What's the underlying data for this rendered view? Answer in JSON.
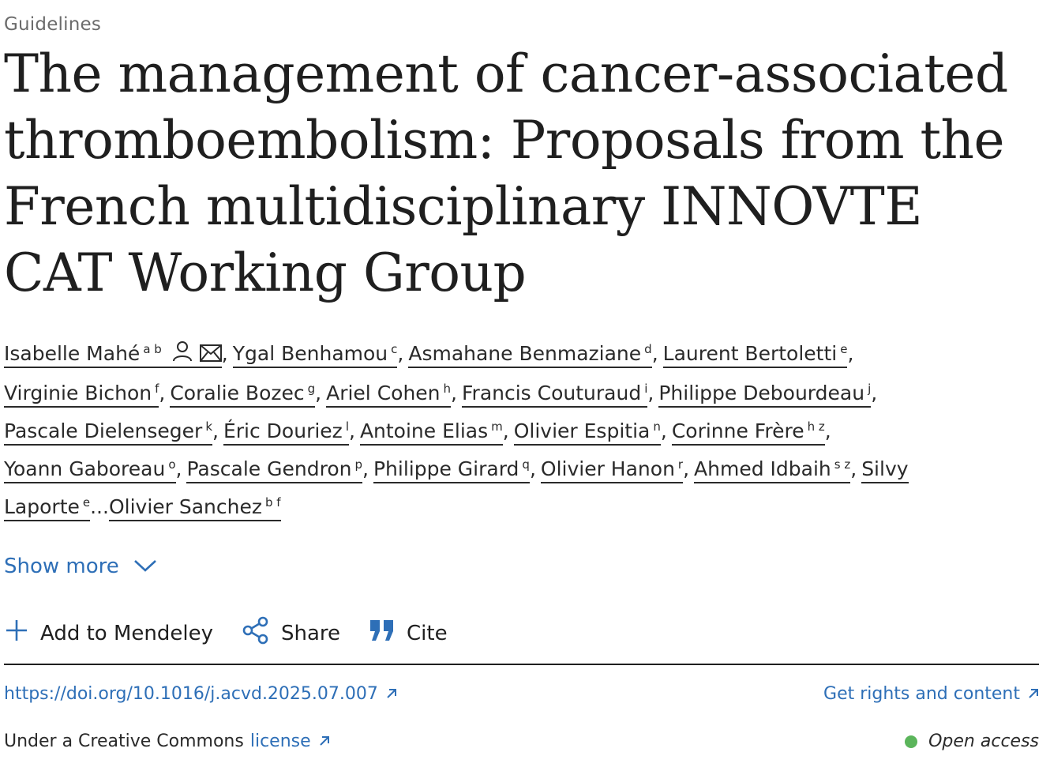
{
  "article_type": "Guidelines",
  "title": "The management of cancer-associated thromboembolism: Proposals from the French multidisciplinary INNOVTE CAT Working Group",
  "authors": [
    {
      "name": "Isabelle Mahé",
      "sup": "a b",
      "corresponding": true
    },
    {
      "name": "Ygal Benhamou",
      "sup": "c"
    },
    {
      "name": "Asmahane Benmaziane",
      "sup": "d"
    },
    {
      "name": "Laurent Bertoletti",
      "sup": "e"
    },
    {
      "name": "Virginie Bichon",
      "sup": "f"
    },
    {
      "name": "Coralie Bozec",
      "sup": "g"
    },
    {
      "name": "Ariel Cohen",
      "sup": "h"
    },
    {
      "name": "Francis Couturaud",
      "sup": "i"
    },
    {
      "name": "Philippe Debourdeau",
      "sup": "j"
    },
    {
      "name": "Pascale Dielenseger",
      "sup": "k"
    },
    {
      "name": "Éric Douriez",
      "sup": "l"
    },
    {
      "name": "Antoine Elias",
      "sup": "m"
    },
    {
      "name": "Olivier Espitia",
      "sup": "n"
    },
    {
      "name": "Corinne Frère",
      "sup": "h z"
    },
    {
      "name": "Yoann Gaboreau",
      "sup": "o"
    },
    {
      "name": "Pascale Gendron",
      "sup": "p"
    },
    {
      "name": "Philippe Girard",
      "sup": "q"
    },
    {
      "name": "Olivier Hanon",
      "sup": "r"
    },
    {
      "name": "Ahmed Idbaih",
      "sup": "s z"
    },
    {
      "name": "Silvy Laporte",
      "sup": "e"
    },
    {
      "name": "Olivier Sanchez",
      "sup": "b f"
    }
  ],
  "ellipsis": "...",
  "show_more_label": "Show more",
  "toolbar": {
    "mendeley_label": "Add to Mendeley",
    "share_label": "Share",
    "cite_label": "Cite"
  },
  "doi_link": "https://doi.org/10.1016/j.acvd.2025.07.007",
  "rights_label": "Get rights and content",
  "license_prefix": "Under a Creative Commons",
  "license_link_label": "license",
  "open_access_label": "Open access",
  "colors": {
    "link": "#2e6fb7",
    "open_access_dot": "#5bb55b"
  },
  "icons": {
    "corresponding": [
      "person-icon",
      "envelope-icon"
    ],
    "show_more": "chevron-down-icon",
    "mendeley": "plus-icon",
    "share": "share-icon",
    "cite": "quote-icon",
    "external": "external-link-arrow-icon"
  }
}
